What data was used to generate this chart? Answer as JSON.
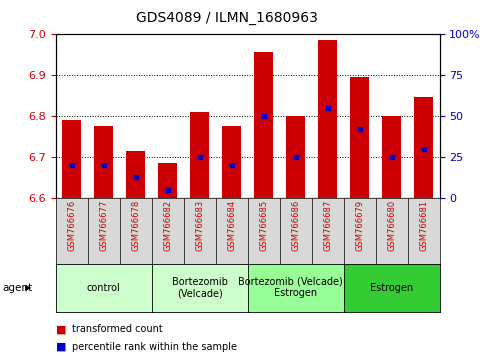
{
  "title": "GDS4089 / ILMN_1680963",
  "samples": [
    "GSM766676",
    "GSM766677",
    "GSM766678",
    "GSM766682",
    "GSM766683",
    "GSM766684",
    "GSM766685",
    "GSM766686",
    "GSM766687",
    "GSM766679",
    "GSM766680",
    "GSM766681"
  ],
  "bar_values": [
    6.79,
    6.775,
    6.715,
    6.685,
    6.81,
    6.775,
    6.955,
    6.8,
    6.985,
    6.895,
    6.8,
    6.845
  ],
  "percentile_values": [
    20,
    20,
    13,
    5,
    25,
    20,
    50,
    25,
    55,
    42,
    25,
    30
  ],
  "bar_bottom": 6.6,
  "ylim_left": [
    6.6,
    7.0
  ],
  "ylim_right": [
    0,
    100
  ],
  "yticks_left": [
    6.6,
    6.7,
    6.8,
    6.9,
    7.0
  ],
  "yticks_right": [
    0,
    25,
    50,
    75,
    100
  ],
  "bar_color": "#CC0000",
  "dot_color": "#0000CC",
  "groups": [
    {
      "label": "control",
      "start": 0,
      "end": 3,
      "color": "#CCFFCC"
    },
    {
      "label": "Bortezomib\n(Velcade)",
      "start": 3,
      "end": 6,
      "color": "#CCFFCC"
    },
    {
      "label": "Bortezomib (Velcade) +\nEstrogen",
      "start": 6,
      "end": 9,
      "color": "#99FF99"
    },
    {
      "label": "Estrogen",
      "start": 9,
      "end": 12,
      "color": "#33CC33"
    }
  ],
  "legend_red_label": "transformed count",
  "legend_blue_label": "percentile rank within the sample",
  "agent_label": "agent",
  "bar_color_left": "#CC0000",
  "tick_color_right": "#0000CC",
  "bar_width": 0.6,
  "ytick_left_fontsize": 8,
  "ytick_right_fontsize": 8,
  "xtick_fontsize": 6,
  "group_fontsize": 7,
  "title_fontsize": 10
}
